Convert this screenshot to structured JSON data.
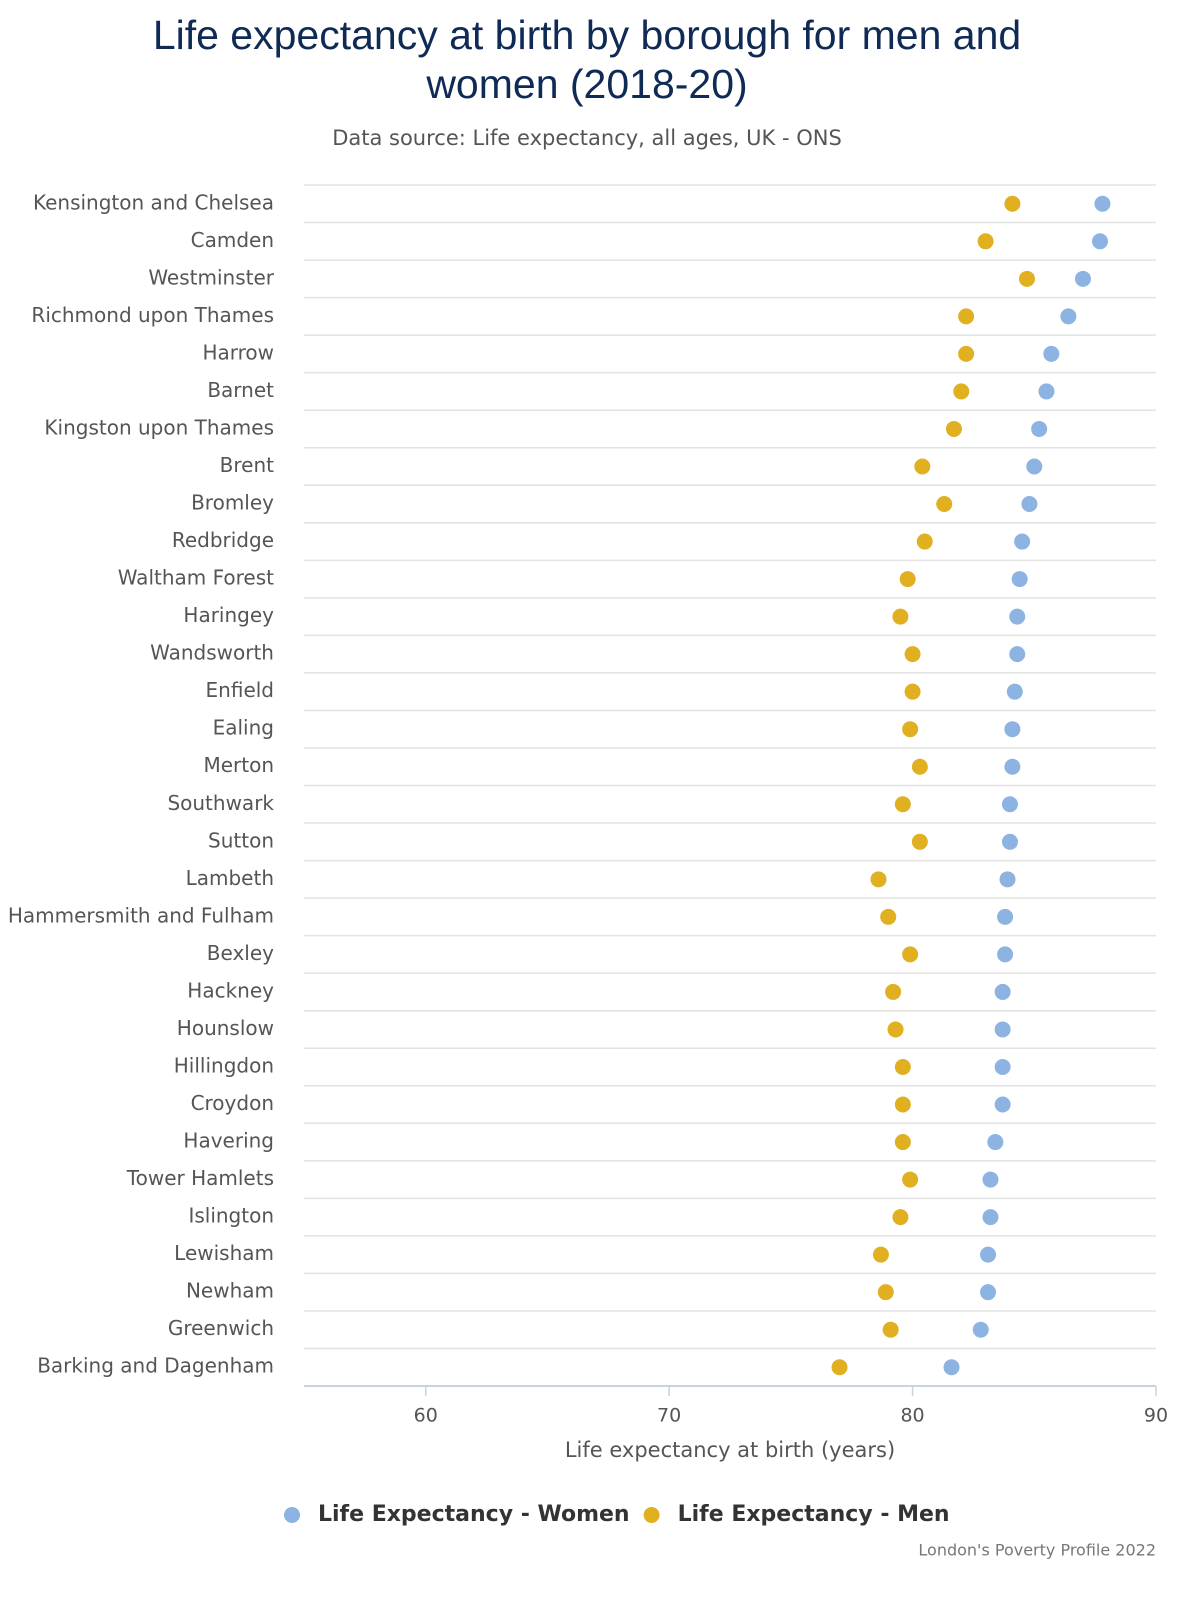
{
  "chart_data": {
    "type": "dot",
    "title": "Life expectancy at birth by borough for men and women (2018-20)",
    "subtitle": "Data source: Life expectancy, all ages, UK - ONS",
    "x_label": "Life expectancy at birth (years)",
    "credit": "London's Poverty Profile 2022",
    "categories": [
      "Kensington and Chelsea",
      "Camden",
      "Westminster",
      "Richmond upon Thames",
      "Harrow",
      "Barnet",
      "Kingston upon Thames",
      "Brent",
      "Bromley",
      "Redbridge",
      "Waltham Forest",
      "Haringey",
      "Wandsworth",
      "Enfield",
      "Ealing",
      "Merton",
      "Southwark",
      "Sutton",
      "Lambeth",
      "Hammersmith and Fulham",
      "Bexley",
      "Hackney",
      "Hounslow",
      "Hillingdon",
      "Croydon",
      "Havering",
      "Tower Hamlets",
      "Islington",
      "Lewisham",
      "Newham",
      "Greenwich",
      "Barking and Dagenham"
    ],
    "series": [
      {
        "name": "Life Expectancy - Women",
        "color": "#8db3e2",
        "values": [
          87.8,
          87.7,
          87.0,
          86.4,
          85.7,
          85.5,
          85.2,
          85.0,
          84.8,
          84.5,
          84.4,
          84.3,
          84.3,
          84.2,
          84.1,
          84.1,
          84.0,
          84.0,
          83.9,
          83.8,
          83.8,
          83.7,
          83.7,
          83.7,
          83.7,
          83.4,
          83.2,
          83.2,
          83.1,
          83.1,
          82.8,
          81.6
        ]
      },
      {
        "name": "Life Expectancy - Men",
        "color": "#e0b021",
        "values": [
          84.1,
          83.0,
          84.7,
          82.2,
          82.2,
          82.0,
          81.7,
          80.4,
          81.3,
          80.5,
          79.8,
          79.5,
          80.0,
          80.0,
          79.9,
          80.3,
          79.6,
          80.3,
          78.6,
          79.0,
          79.9,
          79.2,
          79.3,
          79.6,
          79.6,
          79.6,
          79.9,
          79.5,
          78.7,
          78.9,
          79.1,
          77.0
        ]
      }
    ],
    "xlim": [
      55,
      90
    ],
    "xticks": [
      60,
      70,
      80,
      90
    ],
    "legend": "bottom"
  }
}
